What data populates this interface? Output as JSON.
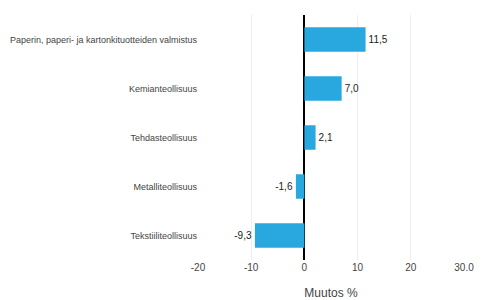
{
  "chart_data": {
    "type": "bar",
    "orientation": "horizontal",
    "categories": [
      "Tekstiiliteollisuus",
      "Metalliteollisuus",
      "Tehdasteollisuus",
      "Kemianteollisuus",
      "Paperin, paperi- ja kartonkituotteiden valmistus"
    ],
    "values": [
      -9.3,
      -1.6,
      2.1,
      7.0,
      11.5
    ],
    "value_labels": [
      "-9,3",
      "-1,6",
      "2,1",
      "7,0",
      "11,5"
    ],
    "data_labels": true,
    "color": "#29a8e0",
    "xlabel": "Muutos %",
    "xlim": [
      -20,
      30
    ],
    "xticks": [
      -20,
      -10,
      0,
      10,
      20,
      {
        "value": 30,
        "label": "30.0"
      }
    ],
    "grid": true
  }
}
